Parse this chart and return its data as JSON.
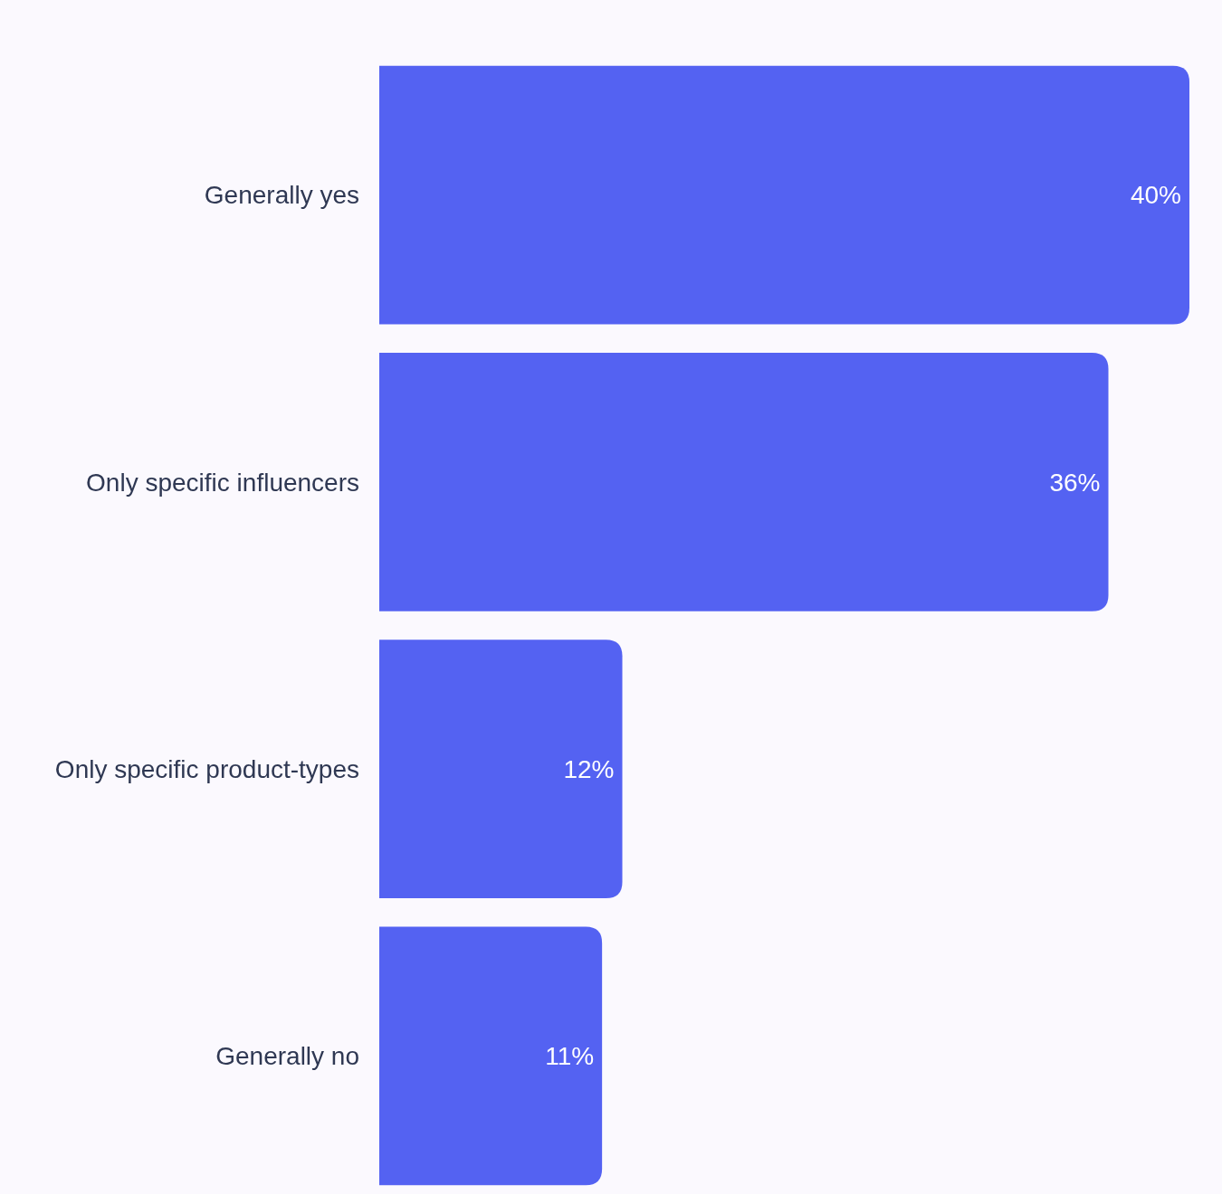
{
  "chart_data": {
    "type": "bar",
    "orientation": "horizontal",
    "categories": [
      "Generally yes",
      "Only specific influencers",
      "Only specific product-types",
      "Generally no"
    ],
    "values": [
      40,
      36,
      12,
      11
    ],
    "value_labels": [
      "40%",
      "36%",
      "12%",
      "11%"
    ],
    "color": "#5462f2"
  }
}
